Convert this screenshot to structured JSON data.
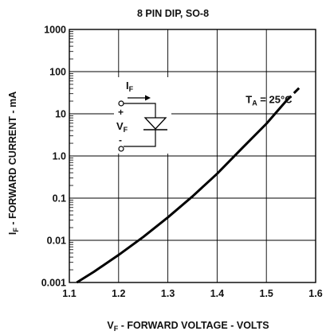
{
  "chart_data": {
    "type": "line",
    "title": "8 PIN DIP, SO-8",
    "xlabel": {
      "main": "V",
      "sub": "F",
      "rest": " -  FORWARD VOLTAGE -  VOLTS"
    },
    "ylabel": {
      "main": "I",
      "sub": "F",
      "rest": " -  FORWARD CURRENT -  mA"
    },
    "x_scale": "linear",
    "y_scale": "log",
    "xlim": [
      1.1,
      1.6
    ],
    "ylim": [
      0.001,
      1000
    ],
    "x_ticks": [
      "1.1",
      "1.2",
      "1.3",
      "1.4",
      "1.5",
      "1.6"
    ],
    "y_ticks": [
      "0.001",
      "0.01",
      "0.1",
      "1.0",
      "10",
      "100",
      "1000"
    ],
    "grid": true,
    "series": [
      {
        "line_style": "solid",
        "x": [
          1.115,
          1.15,
          1.2,
          1.25,
          1.3,
          1.35,
          1.4,
          1.45,
          1.5,
          1.54
        ],
        "y": [
          0.001,
          0.0018,
          0.0045,
          0.012,
          0.035,
          0.11,
          0.38,
          1.5,
          5.8,
          20
        ]
      },
      {
        "line_style": "dashed",
        "x": [
          1.54,
          1.555,
          1.57
        ],
        "y": [
          20,
          30,
          45
        ]
      }
    ],
    "annotation": {
      "main": "T",
      "sub": "A",
      "rest": " = 25°C",
      "x": 1.458,
      "y": 18
    },
    "inset": {
      "current_label": {
        "main": "I",
        "sub": "F"
      },
      "voltage_label": {
        "main": "V",
        "sub": "F"
      },
      "plus_sign": "+",
      "minus_sign": "-",
      "icon": "diode-symbol"
    },
    "colors": {
      "line": "#000000",
      "grid": "#000000",
      "text": "#111111"
    }
  }
}
